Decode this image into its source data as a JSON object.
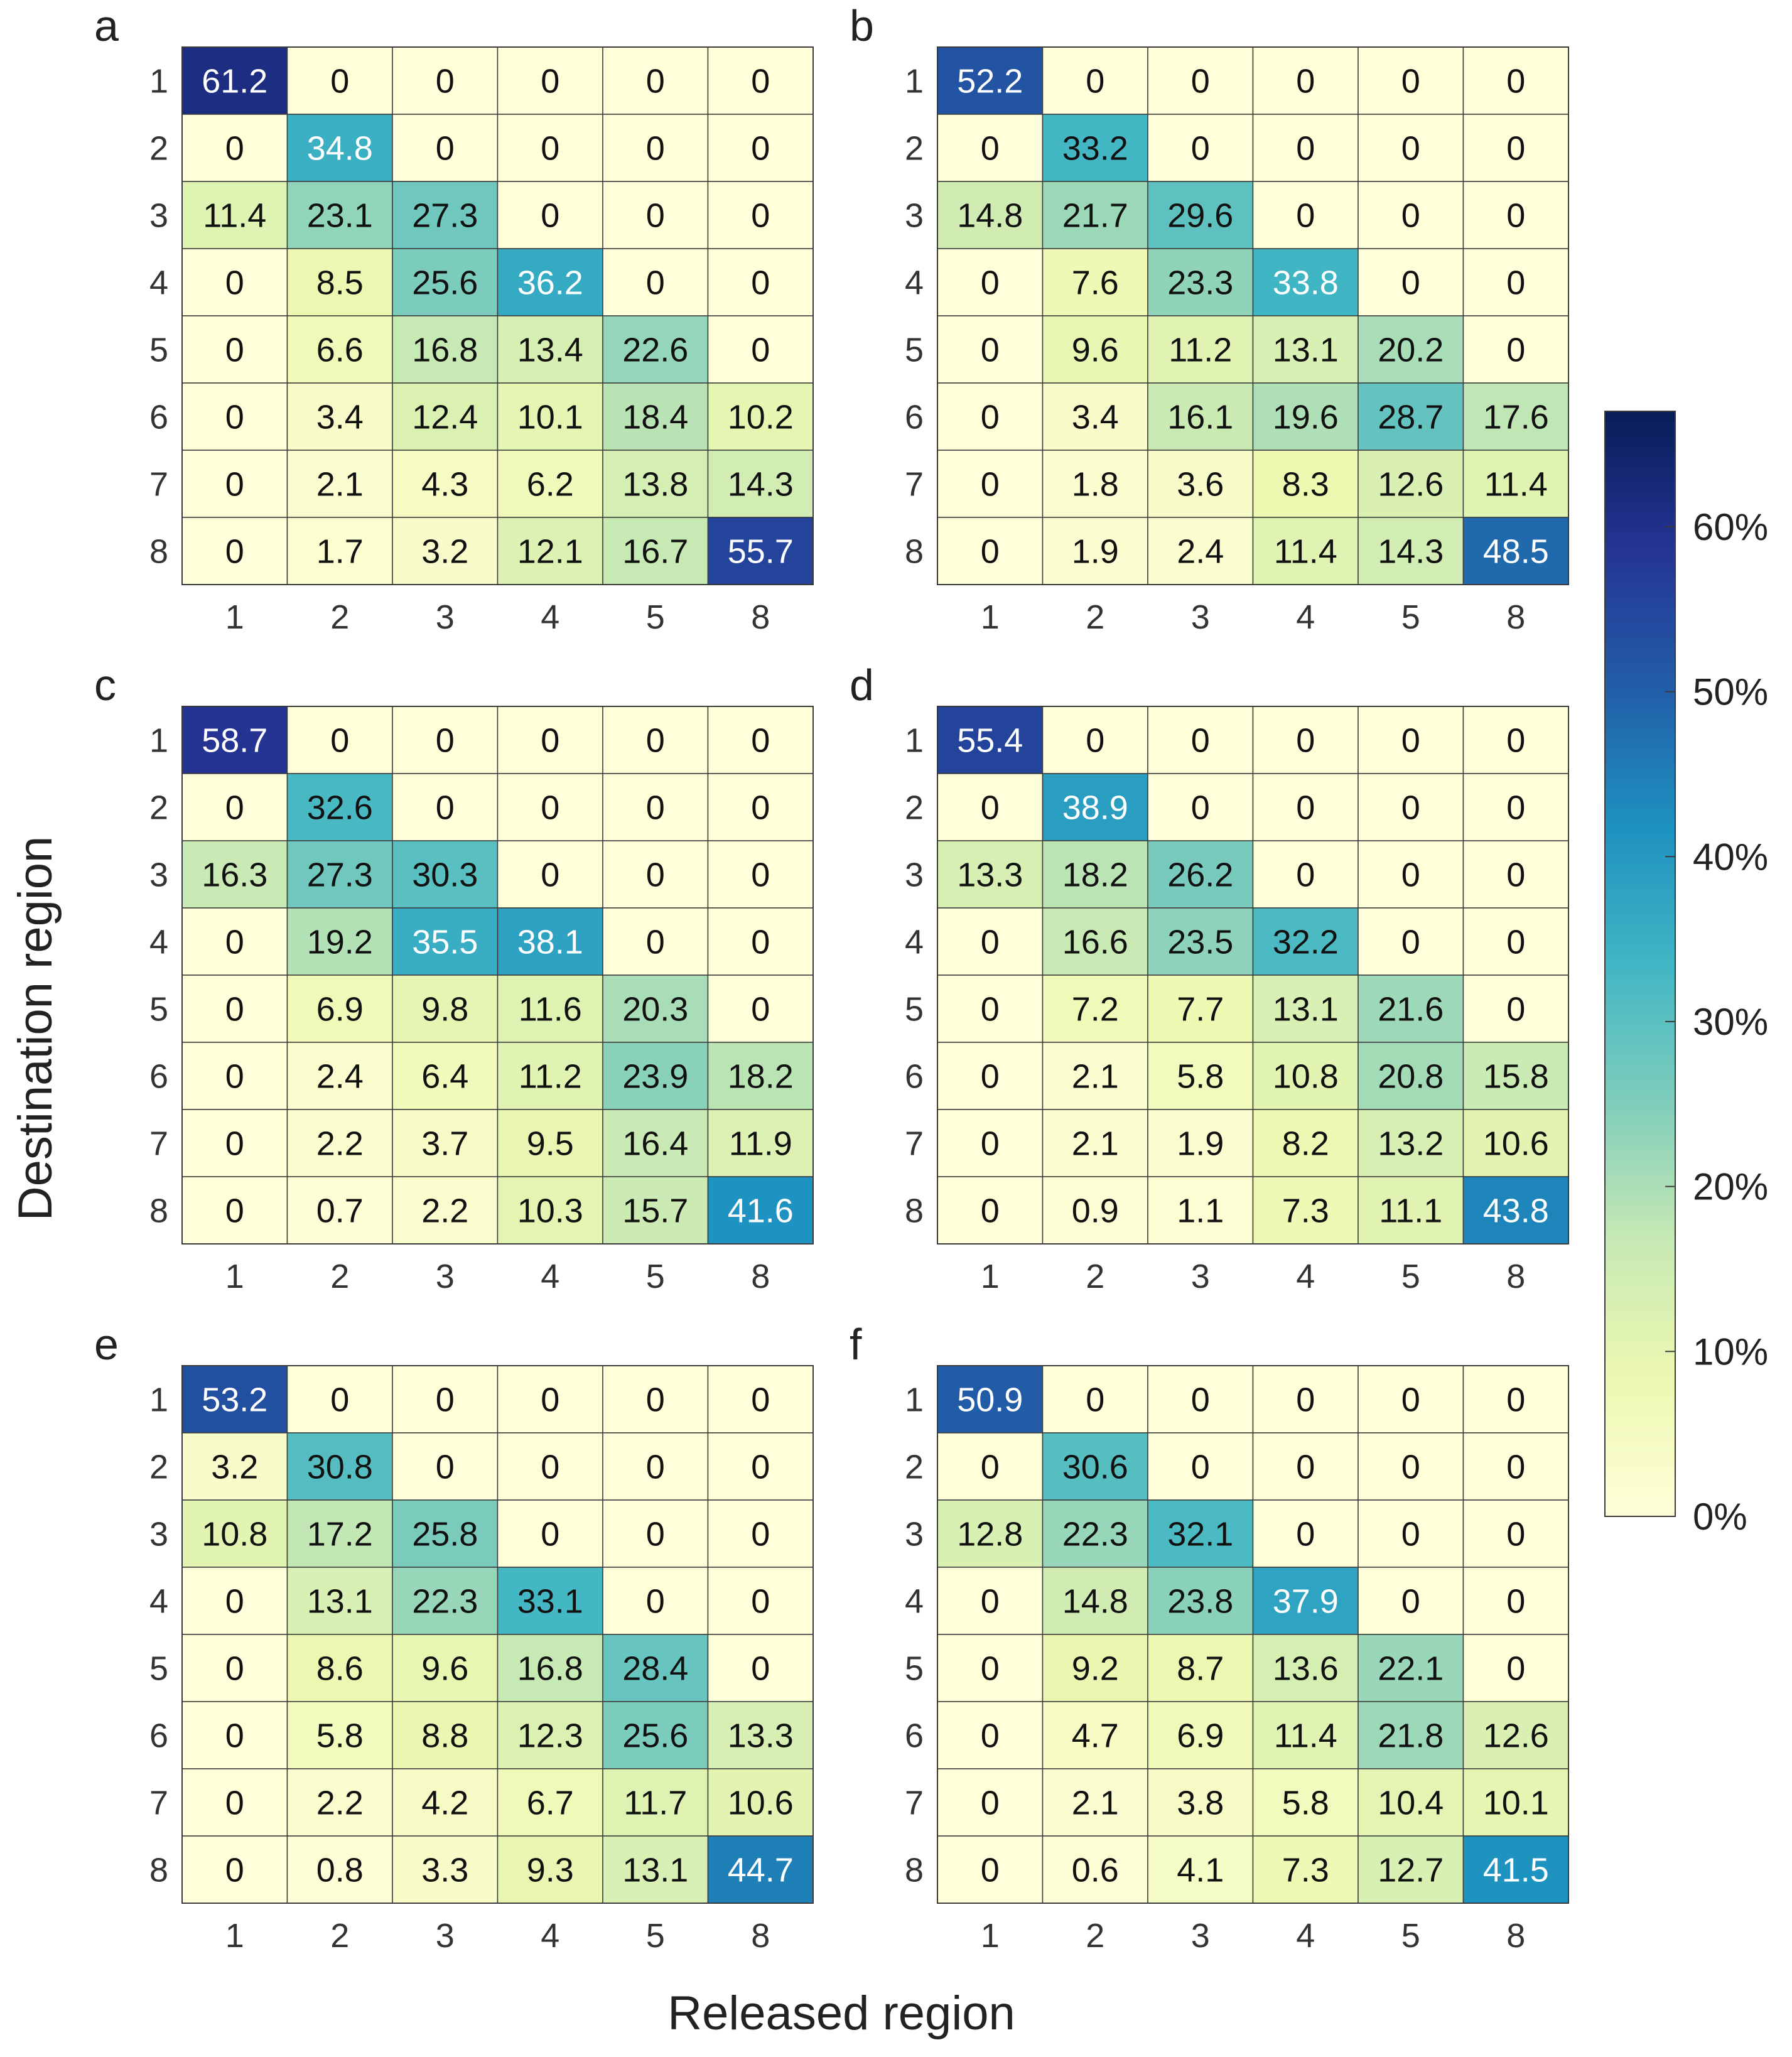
{
  "chart_data": {
    "type": "heatmap",
    "xlabel": "Released region",
    "ylabel": "Destination region",
    "x_categories": [
      "1",
      "2",
      "3",
      "4",
      "5",
      "8"
    ],
    "y_categories": [
      "1",
      "2",
      "3",
      "4",
      "5",
      "6",
      "7",
      "8"
    ],
    "value_range": [
      0,
      67
    ],
    "colorbar": {
      "ticks": [
        0,
        10,
        20,
        30,
        40,
        50,
        60
      ],
      "tick_labels": [
        "0%",
        "10%",
        "20%",
        "30%",
        "40%",
        "50%",
        "60%"
      ]
    },
    "colors": [
      "#ffffd9",
      "#edf8b1",
      "#c7e9b4",
      "#7fcdbb",
      "#41b6c4",
      "#1d91c0",
      "#225ea8",
      "#253494",
      "#081d58"
    ],
    "panels": [
      {
        "label": "a",
        "values": [
          [
            61.2,
            0,
            0,
            0,
            0,
            0
          ],
          [
            0,
            34.8,
            0,
            0,
            0,
            0
          ],
          [
            11.4,
            23.1,
            27.3,
            0,
            0,
            0
          ],
          [
            0,
            8.5,
            25.6,
            36.2,
            0,
            0
          ],
          [
            0,
            6.6,
            16.8,
            13.4,
            22.6,
            0
          ],
          [
            0,
            3.4,
            12.4,
            10.1,
            18.4,
            10.2
          ],
          [
            0,
            2.1,
            4.3,
            6.2,
            13.8,
            14.3
          ],
          [
            0,
            1.7,
            3.2,
            12.1,
            16.7,
            55.7
          ]
        ]
      },
      {
        "label": "b",
        "values": [
          [
            52.2,
            0,
            0,
            0,
            0,
            0
          ],
          [
            0,
            33.2,
            0,
            0,
            0,
            0
          ],
          [
            14.8,
            21.7,
            29.6,
            0,
            0,
            0
          ],
          [
            0,
            7.6,
            23.3,
            33.8,
            0,
            0
          ],
          [
            0,
            9.6,
            11.2,
            13.1,
            20.2,
            0
          ],
          [
            0,
            3.4,
            16.1,
            19.6,
            28.7,
            17.6
          ],
          [
            0,
            1.8,
            3.6,
            8.3,
            12.6,
            11.4
          ],
          [
            0,
            1.9,
            2.4,
            11.4,
            14.3,
            48.5
          ]
        ]
      },
      {
        "label": "c",
        "values": [
          [
            58.7,
            0,
            0,
            0,
            0,
            0
          ],
          [
            0,
            32.6,
            0,
            0,
            0,
            0
          ],
          [
            16.3,
            27.3,
            30.3,
            0,
            0,
            0
          ],
          [
            0,
            19.2,
            35.5,
            38.1,
            0,
            0
          ],
          [
            0,
            6.9,
            9.8,
            11.6,
            20.3,
            0
          ],
          [
            0,
            2.4,
            6.4,
            11.2,
            23.9,
            18.2
          ],
          [
            0,
            2.2,
            3.7,
            9.5,
            16.4,
            11.9
          ],
          [
            0,
            0.7,
            2.2,
            10.3,
            15.7,
            41.6
          ]
        ]
      },
      {
        "label": "d",
        "values": [
          [
            55.4,
            0,
            0,
            0,
            0,
            0
          ],
          [
            0,
            38.9,
            0,
            0,
            0,
            0
          ],
          [
            13.3,
            18.2,
            26.2,
            0,
            0,
            0
          ],
          [
            0,
            16.6,
            23.5,
            32.2,
            0,
            0
          ],
          [
            0,
            7.2,
            7.7,
            13.1,
            21.6,
            0
          ],
          [
            0,
            2.1,
            5.8,
            10.8,
            20.8,
            15.8
          ],
          [
            0,
            2.1,
            1.9,
            8.2,
            13.2,
            10.6
          ],
          [
            0,
            0.9,
            1.1,
            7.3,
            11.1,
            43.8
          ]
        ]
      },
      {
        "label": "e",
        "values": [
          [
            53.2,
            0,
            0,
            0,
            0,
            0
          ],
          [
            3.2,
            30.8,
            0,
            0,
            0,
            0
          ],
          [
            10.8,
            17.2,
            25.8,
            0,
            0,
            0
          ],
          [
            0,
            13.1,
            22.3,
            33.1,
            0,
            0
          ],
          [
            0,
            8.6,
            9.6,
            16.8,
            28.4,
            0
          ],
          [
            0,
            5.8,
            8.8,
            12.3,
            25.6,
            13.3
          ],
          [
            0,
            2.2,
            4.2,
            6.7,
            11.7,
            10.6
          ],
          [
            0,
            0.8,
            3.3,
            9.3,
            13.1,
            44.7
          ]
        ]
      },
      {
        "label": "f",
        "values": [
          [
            50.9,
            0,
            0,
            0,
            0,
            0
          ],
          [
            0,
            30.6,
            0,
            0,
            0,
            0
          ],
          [
            12.8,
            22.3,
            32.1,
            0,
            0,
            0
          ],
          [
            0,
            14.8,
            23.8,
            37.9,
            0,
            0
          ],
          [
            0,
            9.2,
            8.7,
            13.6,
            22.1,
            0
          ],
          [
            0,
            4.7,
            6.9,
            11.4,
            21.8,
            12.6
          ],
          [
            0,
            2.1,
            3.8,
            5.8,
            10.4,
            10.1
          ],
          [
            0,
            0.6,
            4.1,
            7.3,
            12.7,
            41.5
          ]
        ]
      }
    ]
  }
}
